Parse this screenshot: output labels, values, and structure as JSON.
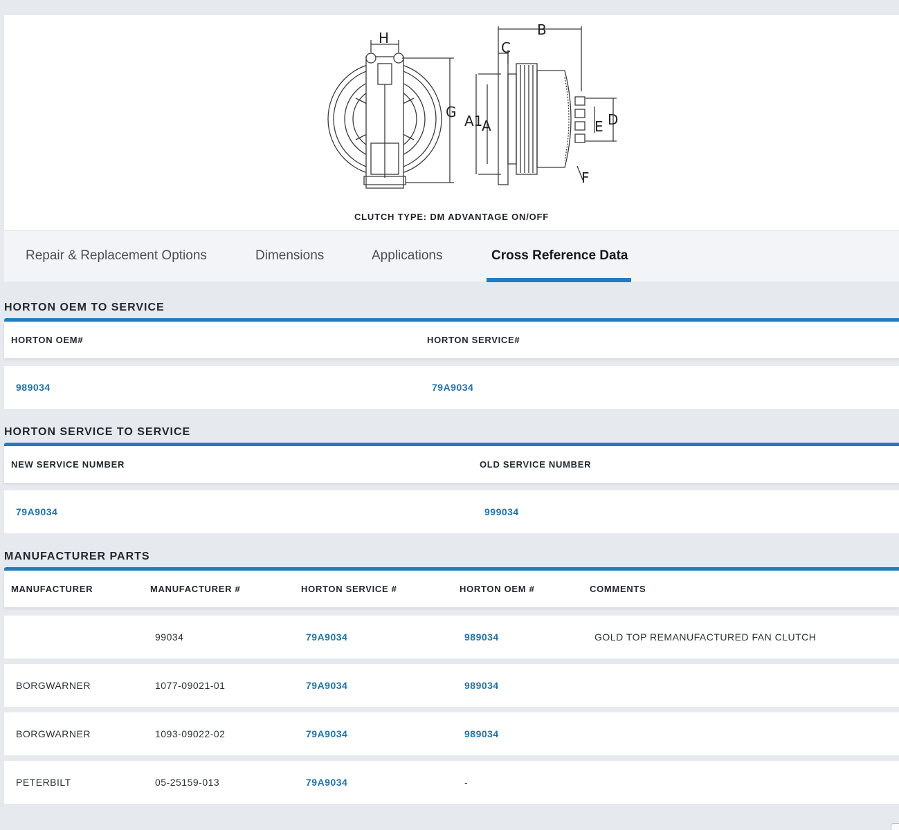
{
  "figure": {
    "caption": "CLUTCH TYPE: DM ADVANTAGE ON/OFF",
    "labels": {
      "h": "H",
      "g": "G",
      "b": "B",
      "c": "C",
      "a1": "A1",
      "a": "A",
      "e": "E",
      "d": "D",
      "f": "F"
    }
  },
  "tabs": [
    {
      "label": "Repair & Replacement Options"
    },
    {
      "label": "Dimensions"
    },
    {
      "label": "Applications"
    },
    {
      "label": "Cross Reference Data"
    }
  ],
  "oem_to_service": {
    "title": "HORTON OEM TO SERVICE",
    "headers": [
      "HORTON OEM#",
      "HORTON SERVICE#"
    ],
    "rows": [
      [
        "989034",
        "79A9034"
      ]
    ]
  },
  "service_to_service": {
    "title": "HORTON SERVICE TO SERVICE",
    "headers": [
      "NEW SERVICE NUMBER",
      "OLD SERVICE NUMBER"
    ],
    "rows": [
      [
        "79A9034",
        "999034"
      ]
    ]
  },
  "manufacturer_parts": {
    "title": "MANUFACTURER PARTS",
    "headers": [
      "MANUFACTURER",
      "MANUFACTURER #",
      "HORTON SERVICE #",
      "HORTON OEM #",
      "COMMENTS"
    ],
    "rows": [
      [
        "",
        "99034",
        "79A9034",
        "989034",
        "GOLD TOP REMANUFACTURED FAN CLUTCH"
      ],
      [
        "BORGWARNER",
        "1077-09021-01",
        "79A9034",
        "989034",
        ""
      ],
      [
        "BORGWARNER",
        "1093-09022-02",
        "79A9034",
        "989034",
        ""
      ],
      [
        "PETERBILT",
        "05-25159-013",
        "79A9034",
        "-",
        ""
      ]
    ]
  },
  "colors": {
    "accent": "#1f7dc1",
    "link": "#1e73b4",
    "page_bg": "#e6e9ee"
  }
}
